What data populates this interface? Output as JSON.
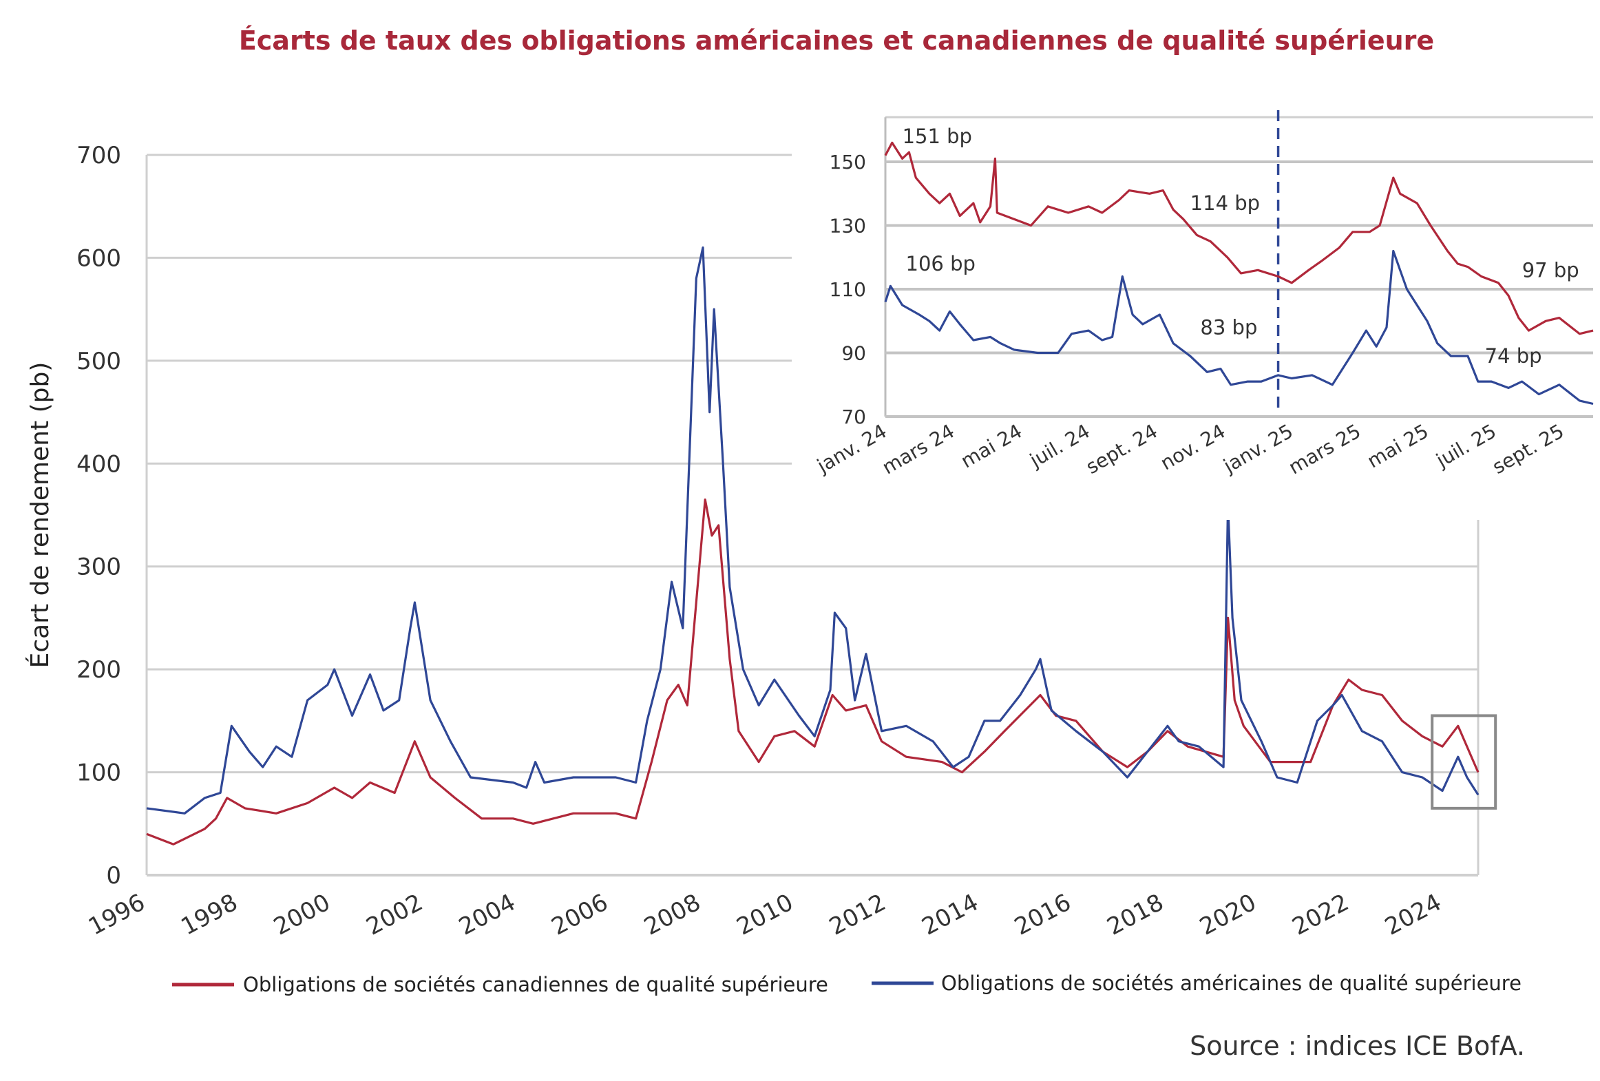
{
  "title": "Écarts de taux des obligations américaines et canadiennes de qualité supérieure",
  "source": "Source : indices ICE BofA.",
  "colors": {
    "title": "#a8283a",
    "canada": "#b0283a",
    "us": "#2f4796",
    "grid": "#cfcfcf",
    "highlight_box": "#8a8a8a"
  },
  "chart_data": [
    {
      "type": "line",
      "title": "Écarts de taux des obligations américaines et canadiennes de qualité supérieure",
      "ylabel": "Écart de rendement (pb)",
      "xlabel": "",
      "xlim": [
        1996,
        2025.8
      ],
      "ylim": [
        0,
        700
      ],
      "yticks": [
        "0",
        "100",
        "200",
        "300",
        "400",
        "500",
        "600",
        "700"
      ],
      "xticks": [
        "1996",
        "1998",
        "2000",
        "2002",
        "2004",
        "2006",
        "2008",
        "2010",
        "2012",
        "2014",
        "2016",
        "2018",
        "2020",
        "2022",
        "2024"
      ],
      "grid": true,
      "legend_position": "bottom",
      "series": [
        {
          "name": "Obligations de sociétés canadiennes de qualité supérieure",
          "color": "#b0283a",
          "x": [
            1996.0,
            1996.6,
            1997.3,
            1997.55,
            1997.8,
            1998.2,
            1998.9,
            1999.6,
            2000.2,
            2000.6,
            2001.0,
            2001.55,
            2002.0,
            2002.35,
            2002.9,
            2003.5,
            2004.2,
            2004.65,
            2005.55,
            2006.5,
            2006.95,
            2007.3,
            2007.65,
            2007.9,
            2008.1,
            2008.35,
            2008.5,
            2008.65,
            2008.8,
            2009.05,
            2009.25,
            2009.7,
            2010.05,
            2010.5,
            2010.95,
            2011.35,
            2011.65,
            2012.1,
            2012.45,
            2013.0,
            2013.8,
            2014.25,
            2014.75,
            2015.2,
            2016.0,
            2016.35,
            2016.8,
            2017.4,
            2017.95,
            2018.4,
            2018.85,
            2019.3,
            2020.1,
            2020.2,
            2020.35,
            2020.55,
            2021.15,
            2022.05,
            2022.55,
            2022.9,
            2023.2,
            2023.65,
            2024.1,
            2024.55,
            2025.0,
            2025.35,
            2025.8
          ],
          "y": [
            40,
            30,
            45,
            55,
            75,
            65,
            60,
            70,
            85,
            75,
            90,
            80,
            130,
            95,
            75,
            55,
            55,
            50,
            60,
            60,
            55,
            110,
            170,
            185,
            165,
            290,
            365,
            330,
            340,
            210,
            140,
            110,
            135,
            140,
            125,
            175,
            160,
            165,
            130,
            115,
            110,
            100,
            120,
            140,
            175,
            155,
            150,
            120,
            105,
            120,
            140,
            125,
            115,
            250,
            170,
            145,
            110,
            110,
            165,
            190,
            180,
            175,
            150,
            135,
            125,
            145,
            100
          ]
        },
        {
          "name": "Obligations de sociétés américaines de qualité supérieure",
          "color": "#2f4796",
          "x": [
            1996.0,
            1996.85,
            1997.3,
            1997.65,
            1997.9,
            1998.3,
            1998.6,
            1998.9,
            1999.25,
            1999.6,
            2000.05,
            2000.2,
            2000.6,
            2001.0,
            2001.3,
            2001.65,
            2001.9,
            2002.0,
            2002.35,
            2002.8,
            2003.25,
            2004.2,
            2004.5,
            2004.7,
            2004.9,
            2005.55,
            2006.5,
            2006.95,
            2007.2,
            2007.5,
            2007.75,
            2008.0,
            2008.3,
            2008.45,
            2008.6,
            2008.7,
            2008.9,
            2009.05,
            2009.35,
            2009.7,
            2010.05,
            2010.6,
            2010.95,
            2011.3,
            2011.4,
            2011.65,
            2011.85,
            2012.1,
            2012.45,
            2013.0,
            2013.6,
            2014.05,
            2014.4,
            2014.75,
            2015.1,
            2015.55,
            2015.9,
            2016.0,
            2016.25,
            2016.8,
            2017.4,
            2017.95,
            2018.4,
            2018.85,
            2019.1,
            2019.55,
            2020.1,
            2020.2,
            2020.3,
            2020.5,
            2020.95,
            2021.3,
            2021.75,
            2022.2,
            2022.55,
            2022.75,
            2023.2,
            2023.65,
            2024.1,
            2024.55,
            2025.0,
            2025.35,
            2025.55,
            2025.8
          ],
          "y": [
            65,
            60,
            75,
            80,
            145,
            120,
            105,
            125,
            115,
            170,
            185,
            200,
            155,
            195,
            160,
            170,
            240,
            265,
            170,
            130,
            95,
            90,
            85,
            110,
            90,
            95,
            95,
            90,
            150,
            200,
            285,
            240,
            580,
            610,
            450,
            550,
            400,
            280,
            200,
            165,
            190,
            155,
            135,
            180,
            255,
            240,
            170,
            215,
            140,
            145,
            130,
            105,
            115,
            150,
            150,
            175,
            200,
            210,
            160,
            140,
            120,
            95,
            120,
            145,
            130,
            125,
            105,
            360,
            250,
            170,
            130,
            95,
            90,
            150,
            165,
            175,
            140,
            130,
            100,
            95,
            82,
            115,
            95,
            78
          ]
        }
      ],
      "highlight_box": {
        "x_range": [
          2024.0,
          2025.8
        ],
        "y_range": [
          65,
          155
        ]
      }
    },
    {
      "type": "line",
      "title": "",
      "xlim": [
        0,
        20.9
      ],
      "ylim": [
        70,
        164
      ],
      "yticks": [
        "70",
        "90",
        "110",
        "130",
        "150"
      ],
      "xticks": [
        "janv. 24",
        "mars 24",
        "mai 24",
        "juil. 24",
        "sept. 24",
        "nov. 24",
        "janv. 25",
        "mars 25",
        "mai 25",
        "juil. 25",
        "sept. 25"
      ],
      "grid": true,
      "vertical_marker": {
        "x": 11.6,
        "style": "dashed",
        "color": "#2f4796"
      },
      "annotations": [
        {
          "text": "151 bp",
          "x": 0.5,
          "y": 158
        },
        {
          "text": "114 bp",
          "x": 9.0,
          "y": 137
        },
        {
          "text": "106 bp",
          "x": 0.6,
          "y": 118
        },
        {
          "text": "83 bp",
          "x": 9.3,
          "y": 98
        },
        {
          "text": "97 bp",
          "x": 18.8,
          "y": 116
        },
        {
          "text": "74 bp",
          "x": 17.7,
          "y": 89
        }
      ],
      "series": [
        {
          "name": "Obligations de sociétés canadiennes de qualité supérieure",
          "color": "#b0283a",
          "x": [
            0,
            0.2,
            0.5,
            0.7,
            0.9,
            1.3,
            1.6,
            1.9,
            2.2,
            2.6,
            2.8,
            3.1,
            3.24,
            3.3,
            3.8,
            4.3,
            4.8,
            5.4,
            6.0,
            6.4,
            6.9,
            7.2,
            7.8,
            8.2,
            8.5,
            8.8,
            9.2,
            9.6,
            10.1,
            10.5,
            11.0,
            11.6,
            12.0,
            12.5,
            12.9,
            13.4,
            13.8,
            14.3,
            14.6,
            15.0,
            15.2,
            15.7,
            16.1,
            16.6,
            16.9,
            17.2,
            17.6,
            18.1,
            18.4,
            18.7,
            19.0,
            19.5,
            19.9,
            20.5,
            20.9
          ],
          "y": [
            152,
            156,
            151,
            153,
            145,
            140,
            137,
            140,
            133,
            137,
            131,
            136,
            151,
            134,
            132,
            130,
            136,
            134,
            136,
            134,
            138,
            141,
            140,
            141,
            135,
            132,
            127,
            125,
            120,
            115,
            116,
            114,
            112,
            116,
            119,
            123,
            128,
            128,
            130,
            145,
            140,
            137,
            130,
            122,
            118,
            117,
            114,
            112,
            108,
            101,
            97,
            100,
            101,
            96,
            97
          ]
        },
        {
          "name": "Obligations de sociétés américaines de qualité supérieure",
          "color": "#2f4796",
          "x": [
            0,
            0.15,
            0.5,
            1.0,
            1.3,
            1.6,
            1.9,
            2.2,
            2.6,
            3.1,
            3.4,
            3.8,
            4.5,
            5.1,
            5.5,
            6.0,
            6.4,
            6.7,
            7.0,
            7.3,
            7.6,
            8.1,
            8.5,
            9.0,
            9.5,
            9.9,
            10.2,
            10.7,
            11.1,
            11.6,
            12.0,
            12.6,
            13.2,
            13.8,
            14.2,
            14.5,
            14.8,
            15.0,
            15.4,
            15.7,
            16.0,
            16.3,
            16.7,
            17.2,
            17.5,
            17.9,
            18.4,
            18.8,
            19.3,
            19.9,
            20.5,
            20.9
          ],
          "y": [
            106,
            111,
            105,
            102,
            100,
            97,
            103,
            99,
            94,
            95,
            93,
            91,
            90,
            90,
            96,
            97,
            94,
            95,
            114,
            102,
            99,
            102,
            93,
            89,
            84,
            85,
            80,
            81,
            81,
            83,
            82,
            83,
            80,
            90,
            97,
            92,
            98,
            122,
            110,
            105,
            100,
            93,
            89,
            89,
            81,
            81,
            79,
            81,
            77,
            80,
            75,
            74
          ]
        }
      ]
    }
  ]
}
